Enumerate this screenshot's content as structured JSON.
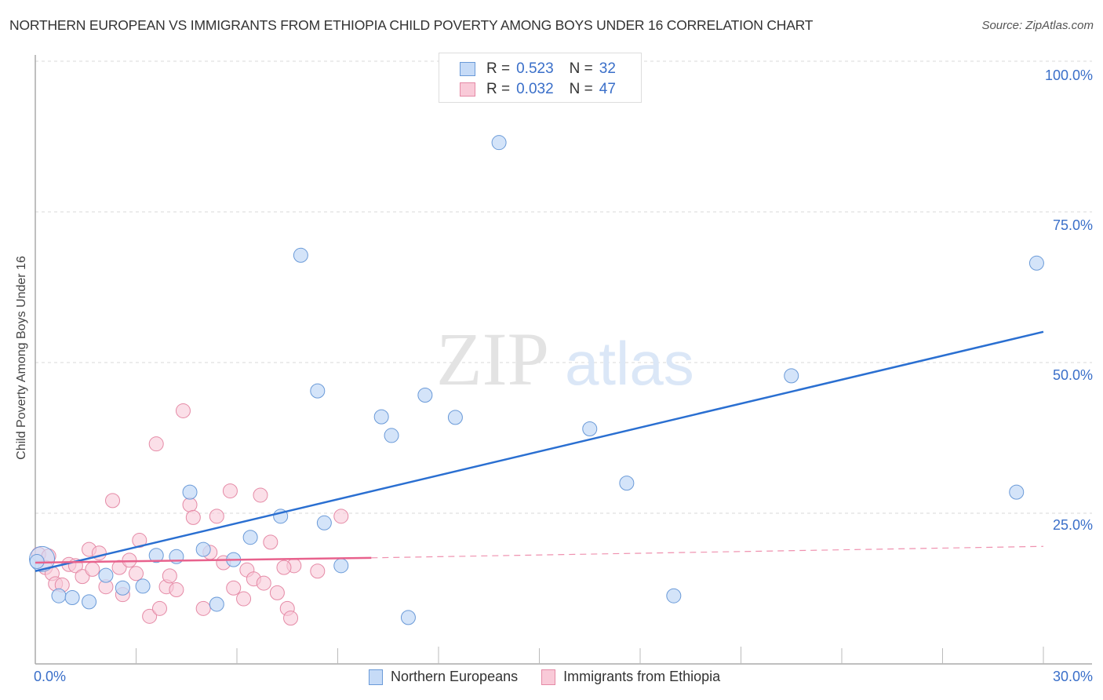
{
  "header": {
    "title": "NORTHERN EUROPEAN VS IMMIGRANTS FROM ETHIOPIA CHILD POVERTY AMONG BOYS UNDER 16 CORRELATION CHART",
    "source": "Source: ZipAtlas.com"
  },
  "legend_top": {
    "rows": [
      {
        "r_label": "R =",
        "r_value": "0.523",
        "n_label": "N =",
        "n_value": "32"
      },
      {
        "r_label": "R =",
        "r_value": "0.032",
        "n_label": "N =",
        "n_value": "47"
      }
    ]
  },
  "axes": {
    "ylabel": "Child Poverty Among Boys Under 16",
    "y_ticks": [
      "100.0%",
      "75.0%",
      "50.0%",
      "25.0%"
    ],
    "x_ticks": [
      "0.0%",
      "30.0%"
    ]
  },
  "watermark": {
    "zip": "ZIP",
    "atlas": "atlas"
  },
  "bottom_legend": [
    {
      "label": "Northern Europeans"
    },
    {
      "label": "Immigrants from Ethiopia"
    }
  ],
  "colors": {
    "blue_fill": "#c6dbf7",
    "blue_stroke": "#6a9ad8",
    "blue_line": "#2a6fd1",
    "pink_fill": "#f9cad8",
    "pink_stroke": "#e58aa6",
    "pink_line": "#e8628d",
    "tick_text": "#3a6fc9"
  },
  "chart_data": {
    "type": "scatter",
    "title": "NORTHERN EUROPEAN VS IMMIGRANTS FROM ETHIOPIA CHILD POVERTY AMONG BOYS UNDER 16 CORRELATION CHART",
    "xlabel": "",
    "ylabel": "Child Poverty Among Boys Under 16",
    "xlim": [
      0,
      30
    ],
    "ylim": [
      0,
      100
    ],
    "x_tick_labels": [
      "0.0%",
      "30.0%"
    ],
    "y_tick_labels": [
      "25.0%",
      "50.0%",
      "75.0%",
      "100.0%"
    ],
    "grid": true,
    "legend_position": "bottom",
    "series": [
      {
        "name": "Northern Europeans",
        "R": 0.523,
        "N": 32,
        "trend": {
          "x": [
            0,
            30
          ],
          "y": [
            15.4,
            55.1
          ]
        },
        "points": [
          [
            0.2,
            17.4
          ],
          [
            0.05,
            17.0
          ],
          [
            0.7,
            11.3
          ],
          [
            1.1,
            11.0
          ],
          [
            1.6,
            10.3
          ],
          [
            2.1,
            14.7
          ],
          [
            2.6,
            12.6
          ],
          [
            3.2,
            12.9
          ],
          [
            3.6,
            18.0
          ],
          [
            4.2,
            17.8
          ],
          [
            4.6,
            28.5
          ],
          [
            5.0,
            19.0
          ],
          [
            5.4,
            9.9
          ],
          [
            5.9,
            17.3
          ],
          [
            6.4,
            21.0
          ],
          [
            7.3,
            24.5
          ],
          [
            7.9,
            67.8
          ],
          [
            8.4,
            45.3
          ],
          [
            8.6,
            23.4
          ],
          [
            9.1,
            16.3
          ],
          [
            10.3,
            41.0
          ],
          [
            10.6,
            37.9
          ],
          [
            11.1,
            7.7
          ],
          [
            11.6,
            44.6
          ],
          [
            12.5,
            40.9
          ],
          [
            13.8,
            86.5
          ],
          [
            16.5,
            39.0
          ],
          [
            17.6,
            30.0
          ],
          [
            19.0,
            11.3
          ],
          [
            22.5,
            47.8
          ],
          [
            29.2,
            28.5
          ],
          [
            29.8,
            66.5
          ]
        ]
      },
      {
        "name": "Immigrants from Ethiopia",
        "R": 0.032,
        "N": 47,
        "trend": {
          "x": [
            0,
            10.0
          ],
          "y": [
            16.8,
            17.6
          ]
        },
        "trend_extension_dashed": {
          "x": [
            10.0,
            30
          ],
          "y": [
            17.6,
            19.5
          ]
        },
        "points": [
          [
            0.1,
            18.2
          ],
          [
            0.3,
            16.0
          ],
          [
            0.5,
            15.0
          ],
          [
            0.6,
            13.3
          ],
          [
            0.4,
            17.9
          ],
          [
            0.8,
            13.1
          ],
          [
            1.0,
            16.5
          ],
          [
            1.2,
            16.3
          ],
          [
            1.4,
            14.5
          ],
          [
            1.6,
            19.0
          ],
          [
            1.7,
            15.7
          ],
          [
            1.9,
            18.4
          ],
          [
            2.1,
            12.8
          ],
          [
            2.3,
            27.1
          ],
          [
            2.5,
            16.0
          ],
          [
            2.6,
            11.5
          ],
          [
            2.8,
            17.2
          ],
          [
            3.0,
            15.0
          ],
          [
            3.1,
            20.5
          ],
          [
            3.4,
            7.9
          ],
          [
            3.6,
            36.5
          ],
          [
            3.7,
            9.2
          ],
          [
            3.9,
            12.8
          ],
          [
            4.0,
            14.6
          ],
          [
            4.2,
            12.3
          ],
          [
            4.4,
            42.0
          ],
          [
            4.6,
            26.4
          ],
          [
            4.7,
            24.3
          ],
          [
            5.0,
            9.2
          ],
          [
            5.2,
            18.5
          ],
          [
            5.4,
            24.5
          ],
          [
            5.6,
            16.8
          ],
          [
            5.8,
            28.7
          ],
          [
            5.9,
            12.6
          ],
          [
            6.2,
            10.8
          ],
          [
            6.3,
            15.6
          ],
          [
            6.5,
            14.1
          ],
          [
            6.7,
            28.0
          ],
          [
            6.8,
            13.4
          ],
          [
            7.0,
            20.2
          ],
          [
            7.2,
            11.8
          ],
          [
            7.5,
            9.2
          ],
          [
            7.6,
            7.6
          ],
          [
            7.7,
            16.3
          ],
          [
            8.4,
            15.4
          ],
          [
            9.1,
            24.5
          ],
          [
            7.4,
            16.0
          ]
        ]
      }
    ]
  }
}
